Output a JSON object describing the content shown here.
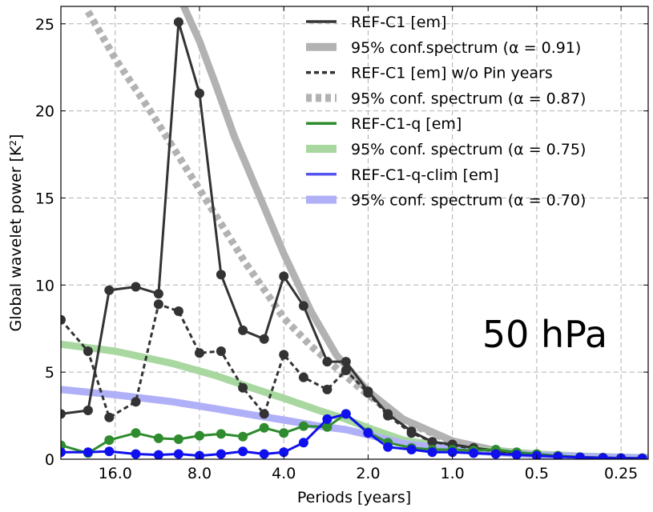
{
  "chart_data": {
    "type": "line",
    "xlabel": "Periods [years]",
    "ylabel": "Global wavelet power [K²]",
    "x_scale": "log2, decreasing period",
    "xlim": [
      25.0,
      0.2
    ],
    "ylim": [
      0,
      26
    ],
    "x_ticks": [
      16.0,
      8.0,
      4.0,
      2.0,
      1.0,
      0.5,
      0.25
    ],
    "x_tick_labels": [
      "16.0",
      "8.0",
      "4.0",
      "2.0",
      "1.0",
      "0.5",
      "0.25"
    ],
    "y_ticks": [
      0,
      5,
      10,
      15,
      20,
      25
    ],
    "y_tick_labels": [
      "0",
      "5",
      "10",
      "15",
      "20",
      "25"
    ],
    "grid": true,
    "legend_position": "top-right",
    "annotation": "50 hPa",
    "periods": [
      25.0,
      20.0,
      16.8,
      13.5,
      11.2,
      9.5,
      8.0,
      6.7,
      5.6,
      4.7,
      4.0,
      3.4,
      2.8,
      2.4,
      2.0,
      1.7,
      1.4,
      1.18,
      1.0,
      0.84,
      0.7,
      0.59,
      0.5,
      0.42,
      0.35,
      0.29,
      0.25,
      0.21
    ],
    "series": [
      {
        "name": "REF-C1 [em]",
        "color": "#333333",
        "style": "solid",
        "values": [
          2.6,
          2.8,
          9.7,
          9.9,
          9.5,
          25.1,
          21.0,
          10.6,
          7.4,
          6.9,
          10.5,
          8.8,
          5.6,
          5.6,
          3.9,
          2.6,
          1.6,
          1.0,
          0.85,
          0.65,
          0.5,
          0.35,
          0.25,
          0.18,
          0.12,
          0.09,
          0.07,
          0.06
        ]
      },
      {
        "name": "REF-C1 [em] w/o Pin years",
        "color": "#333333",
        "style": "dashed",
        "values": [
          8.0,
          6.2,
          2.4,
          3.3,
          8.9,
          8.5,
          6.1,
          6.2,
          4.1,
          2.6,
          6.0,
          4.7,
          4.0,
          5.1,
          3.8,
          2.5,
          1.5,
          1.0,
          0.8,
          0.6,
          0.45,
          0.32,
          0.22,
          0.16,
          0.1,
          0.08,
          0.06,
          0.05
        ]
      },
      {
        "name": "REF-C1-q [em]",
        "color": "#2e8b2e",
        "style": "solid",
        "values": [
          0.8,
          0.35,
          1.1,
          1.5,
          1.2,
          1.15,
          1.35,
          1.45,
          1.3,
          1.8,
          1.5,
          1.9,
          1.85,
          2.6,
          1.55,
          0.95,
          0.65,
          0.55,
          0.55,
          0.5,
          0.55,
          0.4,
          0.3,
          0.2,
          0.12,
          0.08,
          0.06,
          0.05
        ]
      },
      {
        "name": "REF-C1-q-clim [em]",
        "color": "#1010ee",
        "style": "solid",
        "values": [
          0.4,
          0.4,
          0.45,
          0.3,
          0.25,
          0.3,
          0.2,
          0.3,
          0.45,
          0.3,
          0.4,
          0.95,
          2.3,
          2.6,
          1.5,
          0.7,
          0.55,
          0.4,
          0.4,
          0.35,
          0.3,
          0.25,
          0.2,
          0.15,
          0.1,
          0.07,
          0.05,
          0.04
        ]
      }
    ],
    "confidence": [
      {
        "name": "95% conf.spectrum ($\\alpha = 0.91$)",
        "label": "95% conf.spectrum (α = 0.91)",
        "color": "#b2b2b2",
        "style": "solid",
        "periods": [
          9.4,
          8.0,
          7.0,
          6.0,
          5.0,
          4.0,
          3.2,
          2.6,
          2.0,
          1.5,
          1.0,
          0.7,
          0.5,
          0.35,
          0.25,
          0.2
        ],
        "values": [
          26.5,
          24.0,
          21.5,
          18.5,
          15.5,
          11.8,
          8.5,
          6.0,
          3.9,
          2.3,
          1.05,
          0.5,
          0.28,
          0.16,
          0.1,
          0.08
        ]
      },
      {
        "name": "95% conf. spectrum ($\\alpha = 0.87$)",
        "label": "95% conf. spectrum (α = 0.87)",
        "color": "#b2b2b2",
        "style": "dotted",
        "periods": [
          20.0,
          16.0,
          12.0,
          9.0,
          7.0,
          5.5,
          4.5,
          4.0,
          3.2,
          2.5,
          2.0,
          1.5,
          1.0,
          0.7,
          0.5,
          0.35,
          0.25,
          0.2
        ],
        "values": [
          25.7,
          23.0,
          20.0,
          16.8,
          14.0,
          11.3,
          9.3,
          8.1,
          6.5,
          5.0,
          3.7,
          2.2,
          1.0,
          0.5,
          0.27,
          0.16,
          0.1,
          0.08
        ]
      },
      {
        "name": "95% conf. spectrum ($\\alpha = 0.75$)",
        "label": "95% conf. spectrum (α = 0.75)",
        "color": "#a8d8a0",
        "style": "solid",
        "periods": [
          25.0,
          16.0,
          10.0,
          7.0,
          5.0,
          4.0,
          3.0,
          2.4,
          2.0,
          1.5,
          1.0,
          0.7,
          0.5,
          0.35,
          0.25,
          0.2
        ],
        "values": [
          6.6,
          6.2,
          5.5,
          4.8,
          4.0,
          3.5,
          2.8,
          2.3,
          1.8,
          1.1,
          0.65,
          0.45,
          0.3,
          0.18,
          0.12,
          0.08
        ]
      },
      {
        "name": "95% conf. spectrum ($\\alpha = 0.70$)",
        "label": "95% conf. spectrum (α = 0.70)",
        "color": "#b0b0f8",
        "style": "solid",
        "periods": [
          25.0,
          16.0,
          10.0,
          7.0,
          5.0,
          4.0,
          3.0,
          2.4,
          2.0,
          1.5,
          1.0,
          0.7,
          0.5,
          0.35,
          0.25,
          0.2
        ],
        "values": [
          4.0,
          3.7,
          3.3,
          2.9,
          2.5,
          2.25,
          1.9,
          1.7,
          1.4,
          0.9,
          0.55,
          0.38,
          0.25,
          0.15,
          0.1,
          0.07
        ]
      }
    ],
    "legend": [
      {
        "text": "REF-C1 [em]",
        "color": "#333333",
        "style": "solid"
      },
      {
        "text": "95% conf.spectrum (α = 0.91)",
        "color": "#b2b2b2",
        "style": "thick"
      },
      {
        "text": "REF-C1 [em] w/o Pin years",
        "color": "#333333",
        "style": "dashed"
      },
      {
        "text": "95% conf. spectrum (α = 0.87)",
        "color": "#b2b2b2",
        "style": "thickdot"
      },
      {
        "text": "REF-C1-q [em]",
        "color": "#2e8b2e",
        "style": "solid"
      },
      {
        "text": "95% conf. spectrum (α = 0.75)",
        "color": "#a8d8a0",
        "style": "thick"
      },
      {
        "text": "REF-C1-q-clim [em]",
        "color": "#5555ee",
        "style": "solid"
      },
      {
        "text": "95% conf. spectrum (α = 0.70)",
        "color": "#b0b0f8",
        "style": "thick"
      }
    ]
  }
}
